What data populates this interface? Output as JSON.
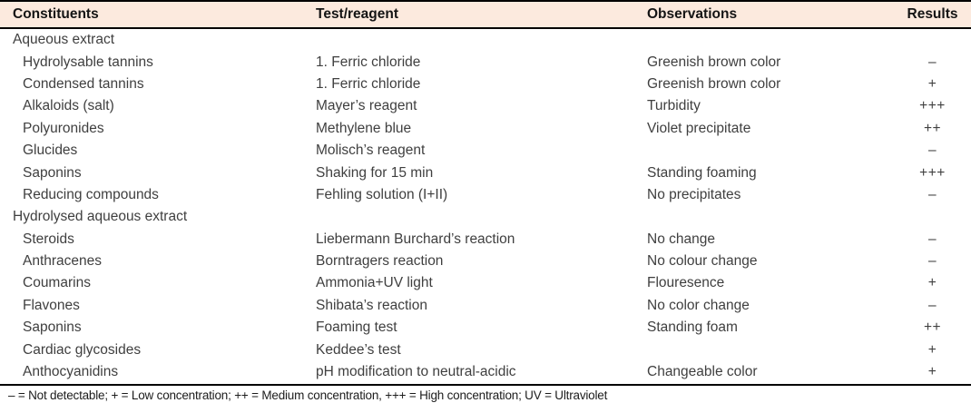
{
  "colors": {
    "header_bg": "#fceade",
    "rule": "#000000",
    "body_text": "#3f3f3f",
    "header_text": "#141414"
  },
  "table": {
    "columns": [
      "Constituents",
      "Test/reagent",
      "Observations",
      "Results"
    ],
    "rows": [
      {
        "type": "section",
        "constituent": "Aqueous extract",
        "test": "",
        "observation": "",
        "result": ""
      },
      {
        "type": "item",
        "constituent": "Hydrolysable tannins",
        "test": "1. Ferric chloride",
        "observation": "Greenish brown color",
        "result": "–"
      },
      {
        "type": "item",
        "constituent": "Condensed tannins",
        "test": "1. Ferric chloride",
        "observation": "Greenish brown color",
        "result": "+"
      },
      {
        "type": "item",
        "constituent": "Alkaloids (salt)",
        "test": "Mayer’s reagent",
        "observation": "Turbidity",
        "result": "+++"
      },
      {
        "type": "item",
        "constituent": "Polyuronides",
        "test": "Methylene blue",
        "observation": "Violet precipitate",
        "result": "++"
      },
      {
        "type": "item",
        "constituent": "Glucides",
        "test": "Molisch’s reagent",
        "observation": "",
        "result": "–"
      },
      {
        "type": "item",
        "constituent": "Saponins",
        "test": "Shaking for 15 min",
        "observation": "Standing foaming",
        "result": "+++"
      },
      {
        "type": "item",
        "constituent": "Reducing compounds",
        "test": "Fehling solution (I+II)",
        "observation": "No precipitates",
        "result": "–"
      },
      {
        "type": "section",
        "constituent": "Hydrolysed aqueous extract",
        "test": "",
        "observation": "",
        "result": ""
      },
      {
        "type": "item",
        "constituent": "Steroids",
        "test": "Liebermann Burchard’s reaction",
        "observation": "No change",
        "result": "–"
      },
      {
        "type": "item",
        "constituent": "Anthracenes",
        "test": "Borntragers reaction",
        "observation": "No colour change",
        "result": "–"
      },
      {
        "type": "item",
        "constituent": "Coumarins",
        "test": "Ammonia+UV light",
        "observation": "Flouresence",
        "result": "+"
      },
      {
        "type": "item",
        "constituent": "Flavones",
        "test": "Shibata’s reaction",
        "observation": "No color change",
        "result": "–"
      },
      {
        "type": "item",
        "constituent": "Saponins",
        "test": "Foaming test",
        "observation": "Standing foam",
        "result": "++"
      },
      {
        "type": "item",
        "constituent": "Cardiac glycosides",
        "test": "Keddee’s test",
        "observation": "",
        "result": "+"
      },
      {
        "type": "item",
        "constituent": "Anthocyanidins",
        "test": "pH modification to neutral-acidic",
        "observation": "Changeable color",
        "result": "+"
      }
    ],
    "footnote": "– = Not detectable; + = Low concentration; ++ = Medium concentration, +++ = High concentration; UV = Ultraviolet"
  }
}
